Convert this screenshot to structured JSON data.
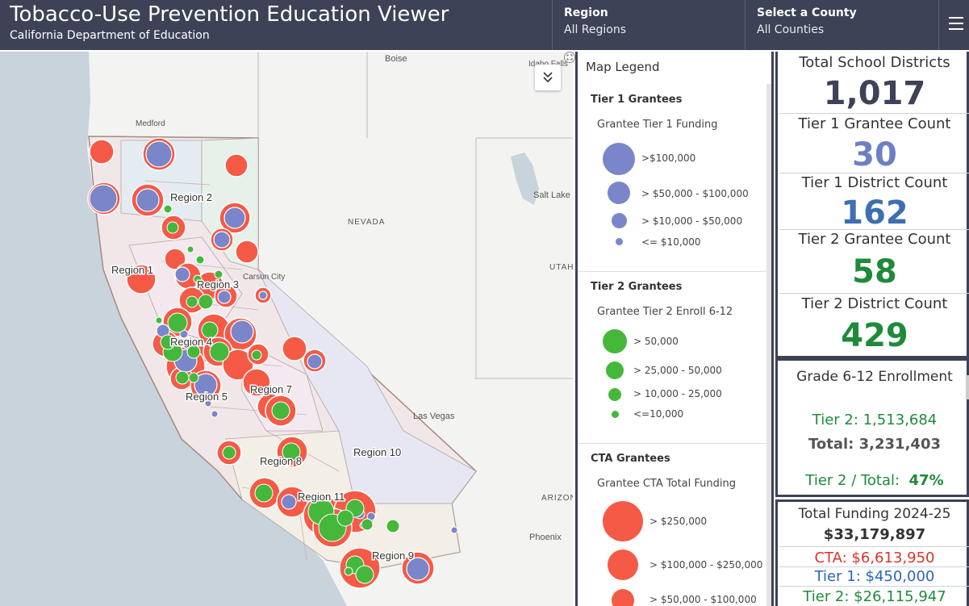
{
  "header": {
    "title": "Tobacco-Use Prevention Education Viewer",
    "subtitle": "California Department of Education",
    "region_label": "Region",
    "region_value": "All Regions",
    "county_label": "Select a County",
    "county_value": "All Counties"
  },
  "map": {
    "place_labels": [
      "Boise",
      "Idaho Falls",
      "Medford",
      "Salt Lake City",
      "NEVADA",
      "UTAH",
      "Carson City",
      "Las Vegas",
      "ARIZONA",
      "Phoenix"
    ],
    "region_labels": [
      "Region 1",
      "Region 2",
      "Region 3",
      "Region 4",
      "Region 5",
      "Region 7",
      "Region 8",
      "Region 9",
      "Region 10",
      "Region 11"
    ],
    "collapse_icon": "chevron-double-down-icon",
    "colors": {
      "cta": "#f55a46",
      "tier1": "#7b85c9",
      "tier2": "#45b83c",
      "water": "#c9d3dc",
      "land": "#f3f3f1"
    }
  },
  "legend": {
    "title": "Map Legend",
    "tier1": {
      "heading": "Tier 1 Grantees",
      "subheading": "Grantee Tier 1 Funding",
      "items": [
        ">$100,000",
        "> $50,000 - $100,000",
        "> $10,000 - $50,000",
        "<= $10,000"
      ]
    },
    "tier2": {
      "heading": "Tier 2 Grantees",
      "subheading": "Grantee Tier 2 Enroll 6-12",
      "items": [
        "> 50,000",
        "> 25,000 - 50,000",
        "> 10,000 - 25,000",
        "<=10,000"
      ]
    },
    "cta": {
      "heading": "CTA Grantees",
      "subheading": "Grantee CTA Total Funding",
      "items": [
        "> $250,000",
        "> $100,000 - $250,000",
        "> $50,000 - $100,000"
      ]
    }
  },
  "stats": {
    "total_districts_label": "Total School Districts",
    "total_districts_value": "1,017",
    "tier1_grantee_label": "Tier 1 Grantee Count",
    "tier1_grantee_value": "30",
    "tier1_district_label": "Tier 1 District Count",
    "tier1_district_value": "162",
    "tier2_grantee_label": "Tier 2 Grantee Count",
    "tier2_grantee_value": "58",
    "tier2_district_label": "Tier 2 District Count",
    "tier2_district_value": "429",
    "enrollment_label": "Grade 6-12 Enrollment",
    "enroll_tier2": "Tier 2: 1,513,684",
    "enroll_total_label": "Total:",
    "enroll_total_value": "3,231,403",
    "enroll_ratio_label": "Tier 2 / Total:",
    "enroll_ratio_value": "47%",
    "funding_label": "Total Funding 2024-25",
    "funding_total": "$33,179,897",
    "funding_cta": "CTA: $6,613,950",
    "funding_tier1": "Tier 1: $450,000",
    "funding_tier2": "Tier 2: $26,115,947"
  }
}
